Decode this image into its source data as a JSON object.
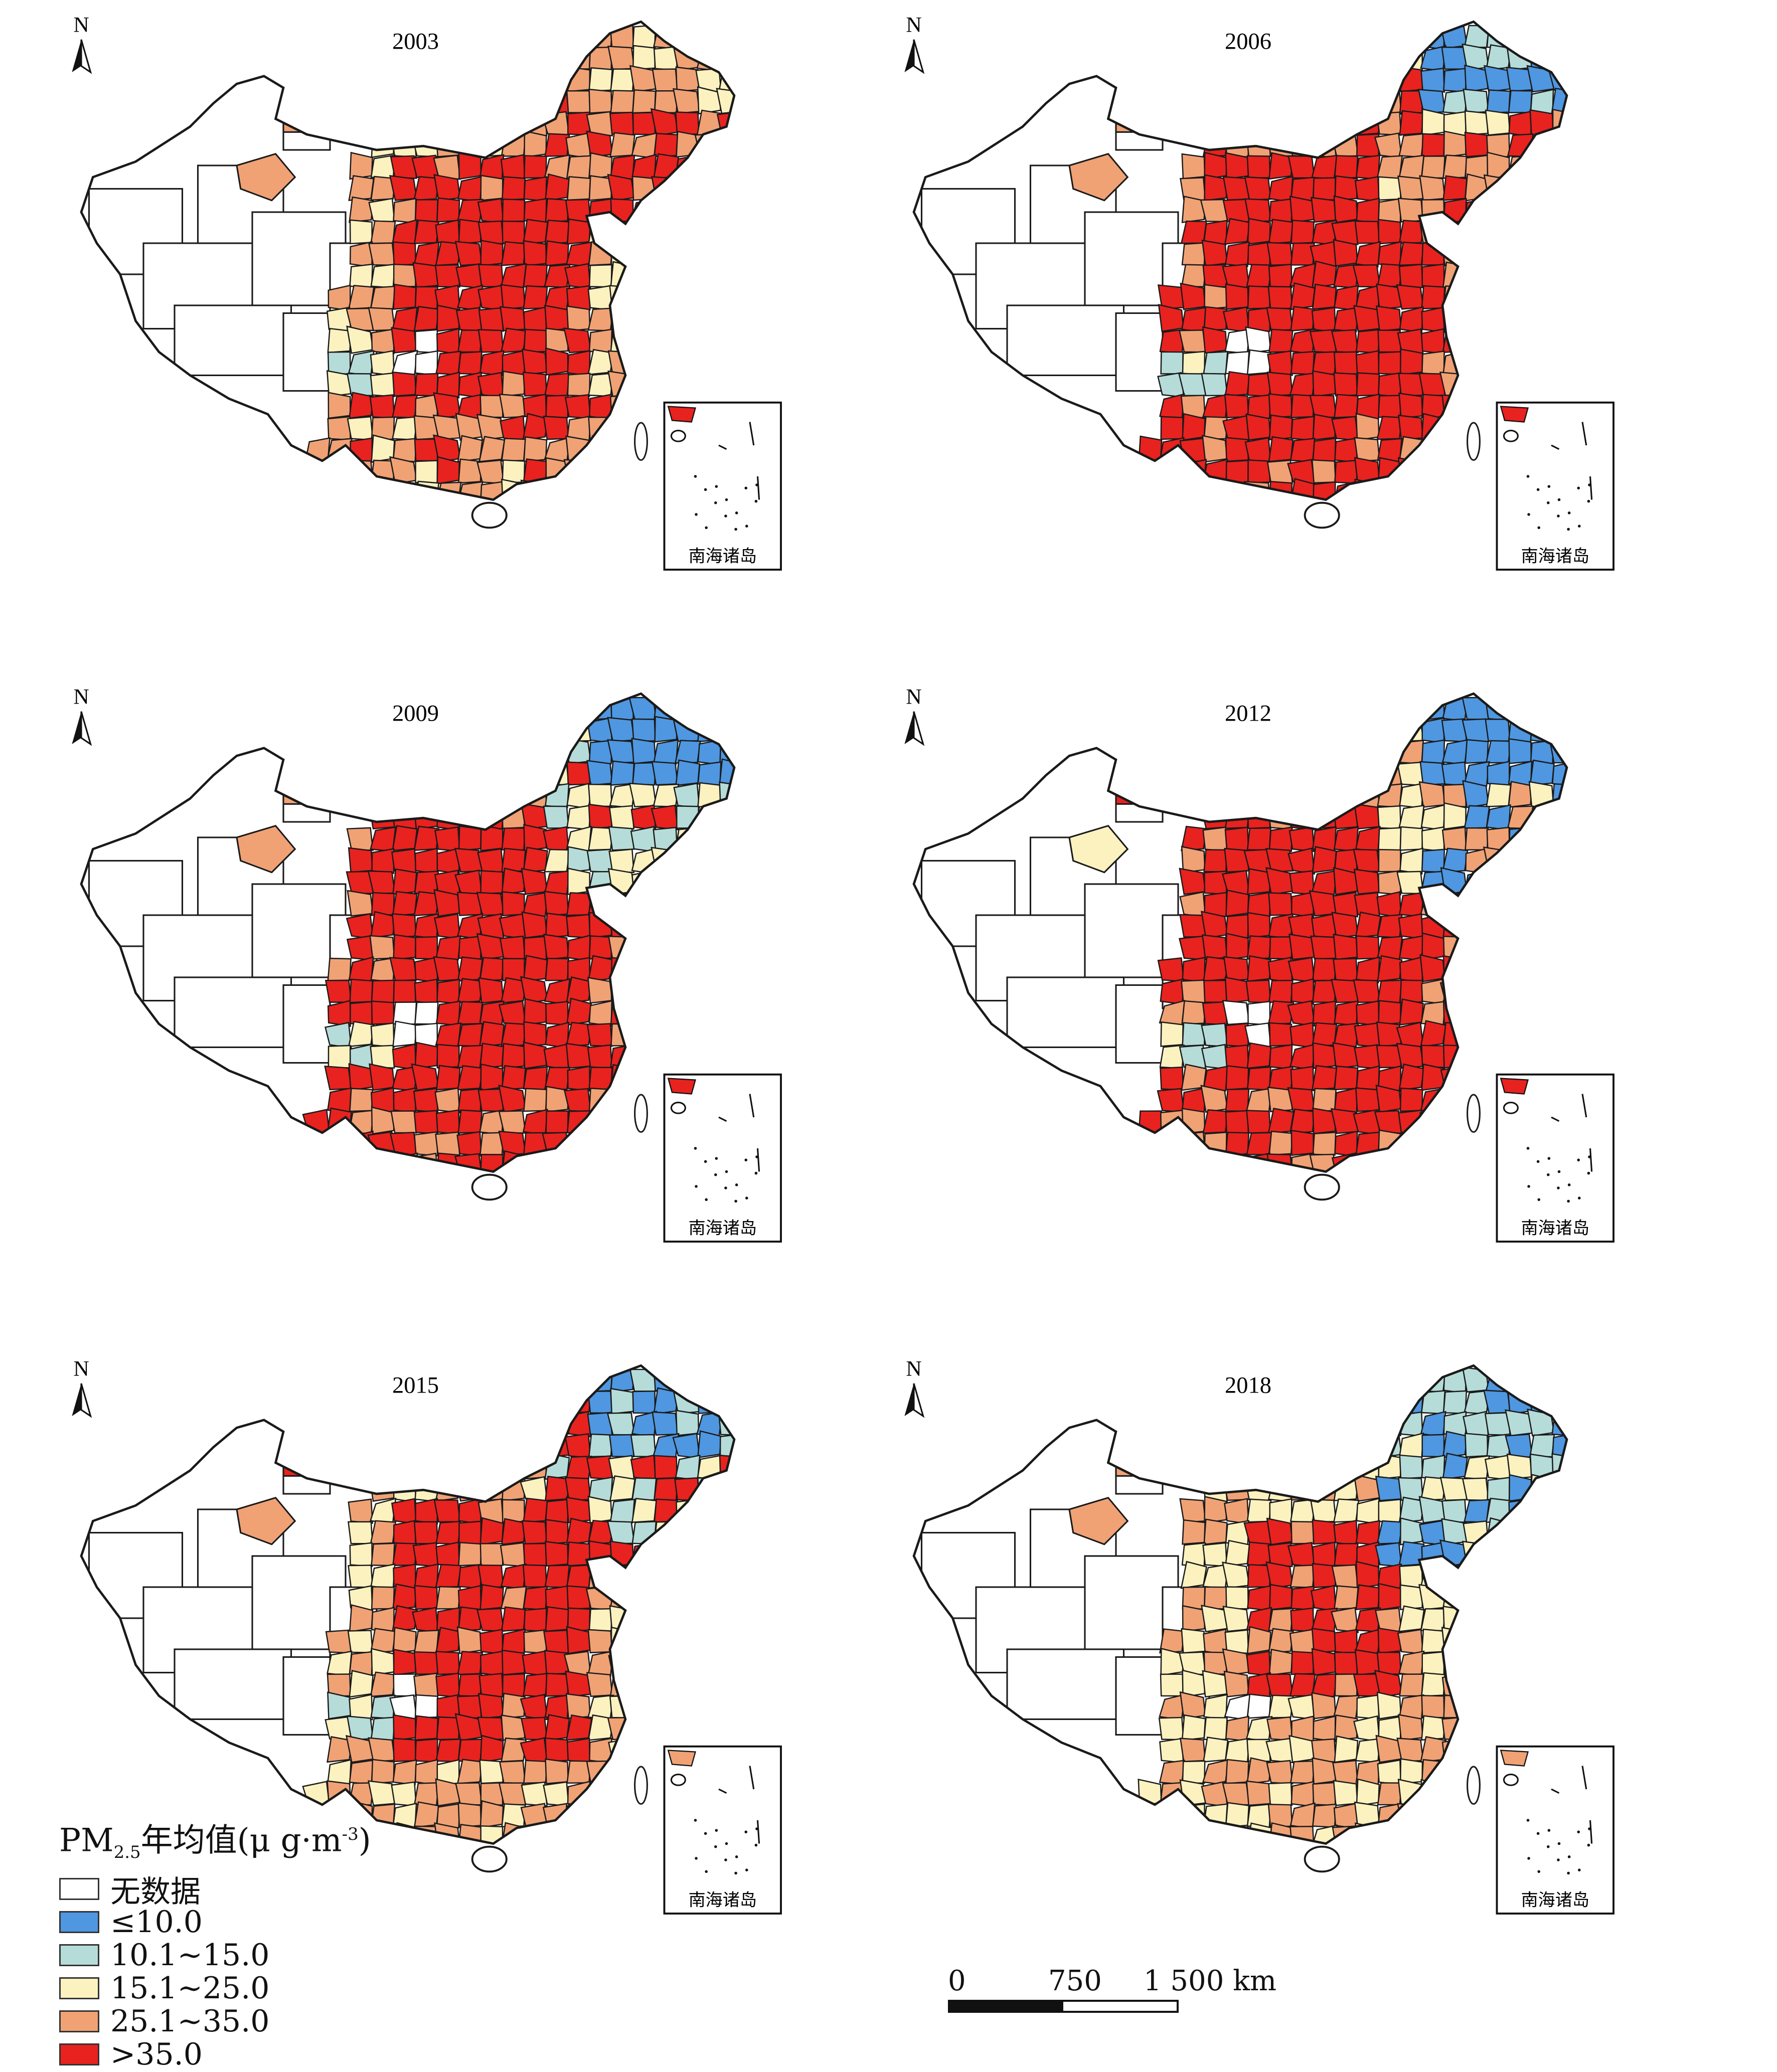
{
  "panels": [
    {
      "year": "2003",
      "seed": 11,
      "inset_label": "南海诸岛",
      "north": "N"
    },
    {
      "year": "2006",
      "seed": 23,
      "inset_label": "南海诸岛",
      "north": "N"
    },
    {
      "year": "2009",
      "seed": 37,
      "inset_label": "南海诸岛",
      "north": "N"
    },
    {
      "year": "2012",
      "seed": 41,
      "inset_label": "南海诸岛",
      "north": "N"
    },
    {
      "year": "2015",
      "seed": 53,
      "inset_label": "南海诸岛",
      "north": "N"
    },
    {
      "year": "2018",
      "seed": 67,
      "inset_label": "南海诸岛",
      "north": "N"
    }
  ],
  "legend": {
    "title_prefix": "PM",
    "title_sub": "2.5",
    "title_main": "年均值(μ g·m",
    "title_sup": "-3",
    "title_end": ")",
    "items": [
      {
        "label": "无数据",
        "color": "#ffffff"
      },
      {
        "label": "≤10.0",
        "color": "#4f97e0"
      },
      {
        "label": "10.1~15.0",
        "color": "#b5dcd9"
      },
      {
        "label": "15.1~25.0",
        "color": "#fbf2c0"
      },
      {
        "label": "25.1~35.0",
        "color": "#f0a275"
      },
      {
        "label": ">35.0",
        "color": "#e8221f"
      }
    ]
  },
  "scale": {
    "label_0": "0",
    "label_750": "750",
    "label_1500": "1 500 km"
  }
}
